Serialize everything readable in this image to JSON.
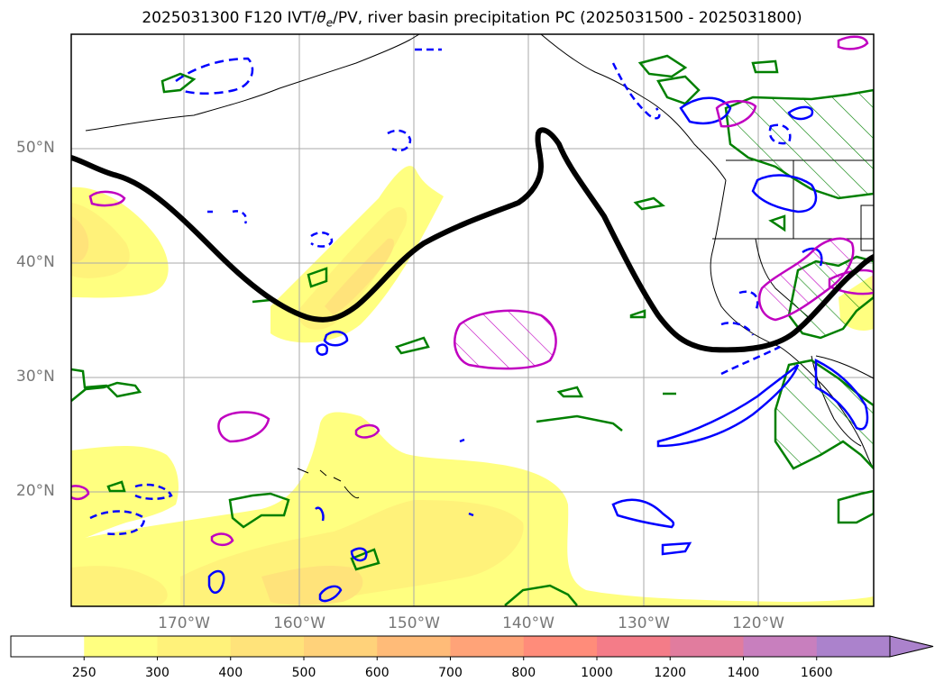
{
  "title": {
    "prefix": "2025031300 F120 IVT/",
    "theta": "θ",
    "theta_sub": "e",
    "suffix": "/PV, river basin precipitation PC (2025031500 - 2025031800)"
  },
  "axes": {
    "lat_labels": [
      "50°N",
      "40°N",
      "30°N",
      "20°N"
    ],
    "lon_labels": [
      "170°W",
      "160°W",
      "150°W",
      "140°W",
      "130°W",
      "120°W"
    ]
  },
  "colorbar": {
    "ticks": [
      "250",
      "300",
      "400",
      "500",
      "600",
      "700",
      "800",
      "1000",
      "1200",
      "1400",
      "1600"
    ],
    "colors": [
      "#ffffff",
      "#ffff80",
      "#fff27a",
      "#ffe37a",
      "#ffd27a",
      "#ffbb78",
      "#ffa378",
      "#ff8c7a",
      "#f47c88",
      "#e17c9e",
      "#c87fbe",
      "#ab82cc"
    ]
  },
  "colors": {
    "trough_line": "#000000",
    "pv_green": "#008000",
    "theta_blue": "#0000ff",
    "precip_magenta": "#c000c0",
    "grid": "#aaaaaa",
    "coast": "#000000"
  }
}
